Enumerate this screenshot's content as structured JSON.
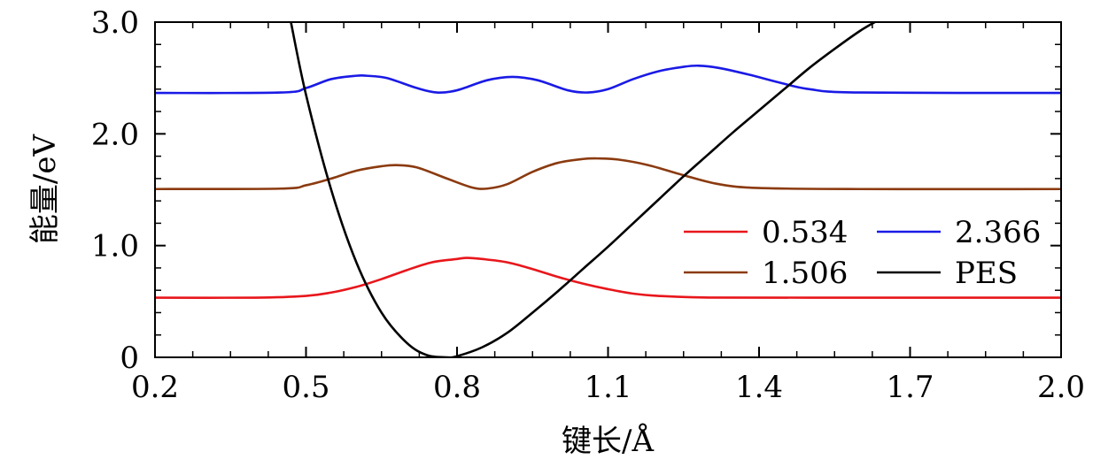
{
  "chart_data": {
    "type": "line",
    "xlabel": "键长/Å",
    "ylabel": "能量/eV",
    "xlim": [
      0.2,
      2.0
    ],
    "ylim": [
      0.0,
      3.0
    ],
    "xticks": [
      "0.2",
      "0.5",
      "0.8",
      "1.1",
      "1.4",
      "1.7",
      "2.0"
    ],
    "yticks": [
      "0",
      "1.0",
      "2.0",
      "3.0"
    ],
    "legend_position": "lower-right",
    "series": [
      {
        "name": "0.534",
        "color": "#e8161b",
        "x": [
          0.2,
          0.4,
          0.5,
          0.55,
          0.6,
          0.65,
          0.7,
          0.75,
          0.8,
          0.82,
          0.85,
          0.9,
          0.95,
          1.0,
          1.05,
          1.1,
          1.15,
          1.2,
          1.3,
          1.5,
          1.8,
          2.0
        ],
        "y": [
          0.534,
          0.534,
          0.55,
          0.58,
          0.63,
          0.7,
          0.78,
          0.85,
          0.88,
          0.89,
          0.88,
          0.85,
          0.79,
          0.72,
          0.66,
          0.61,
          0.57,
          0.55,
          0.535,
          0.534,
          0.534,
          0.534
        ]
      },
      {
        "name": "1.506",
        "color": "#8b3a0f",
        "x": [
          0.2,
          0.45,
          0.5,
          0.55,
          0.6,
          0.65,
          0.68,
          0.72,
          0.78,
          0.83,
          0.86,
          0.9,
          0.95,
          1.0,
          1.05,
          1.08,
          1.12,
          1.18,
          1.25,
          1.32,
          1.4,
          1.6,
          2.0
        ],
        "y": [
          1.506,
          1.51,
          1.54,
          1.6,
          1.67,
          1.71,
          1.72,
          1.7,
          1.6,
          1.52,
          1.51,
          1.55,
          1.66,
          1.74,
          1.775,
          1.78,
          1.77,
          1.72,
          1.63,
          1.55,
          1.515,
          1.506,
          1.506
        ]
      },
      {
        "name": "2.366",
        "color": "#1a1ae6",
        "x": [
          0.2,
          0.45,
          0.5,
          0.55,
          0.6,
          0.62,
          0.66,
          0.72,
          0.76,
          0.8,
          0.86,
          0.91,
          0.96,
          1.02,
          1.06,
          1.1,
          1.15,
          1.2,
          1.25,
          1.28,
          1.32,
          1.38,
          1.44,
          1.5,
          1.6,
          2.0
        ],
        "y": [
          2.366,
          2.37,
          2.41,
          2.49,
          2.52,
          2.52,
          2.5,
          2.41,
          2.37,
          2.39,
          2.48,
          2.51,
          2.48,
          2.39,
          2.37,
          2.4,
          2.49,
          2.56,
          2.6,
          2.61,
          2.59,
          2.53,
          2.46,
          2.4,
          2.37,
          2.366
        ]
      },
      {
        "name": "PES",
        "color": "#000000",
        "x": [
          0.47,
          0.5,
          0.55,
          0.6,
          0.65,
          0.7,
          0.74,
          0.78,
          0.8,
          0.85,
          0.9,
          0.95,
          1.0,
          1.05,
          1.1,
          1.15,
          1.2,
          1.25,
          1.3,
          1.35,
          1.4,
          1.45,
          1.5,
          1.55,
          1.6,
          1.63
        ],
        "y": [
          3.0,
          2.35,
          1.5,
          0.85,
          0.4,
          0.13,
          0.02,
          0.0,
          0.01,
          0.09,
          0.22,
          0.4,
          0.59,
          0.79,
          0.99,
          1.2,
          1.41,
          1.62,
          1.82,
          2.02,
          2.21,
          2.4,
          2.59,
          2.76,
          2.92,
          3.0
        ]
      }
    ]
  }
}
